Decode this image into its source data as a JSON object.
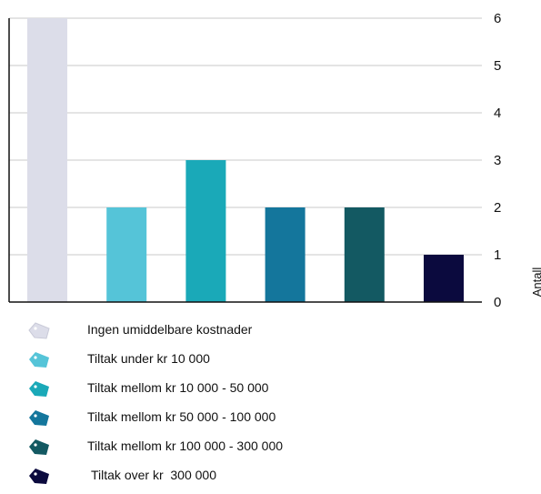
{
  "chart_data": {
    "type": "bar",
    "categories": [
      "Ingen umiddelbare kostnader",
      "Tiltak under kr 10 000",
      "Tiltak mellom kr 10 000 - 50 000",
      "Tiltak mellom kr 50 000 - 100 000",
      "Tiltak mellom kr 100 000 - 300 000",
      "Tiltak over kr  300 000"
    ],
    "values": [
      6,
      2,
      3,
      2,
      2,
      1
    ],
    "colors": [
      "#dcdde9",
      "#55c4d8",
      "#1aa9b8",
      "#14769c",
      "#135962",
      "#0b0a3e"
    ],
    "ylabel": "Antall",
    "ylim": [
      0,
      6
    ],
    "yticks": [
      "0",
      "1",
      "2",
      "3",
      "4",
      "5",
      "6"
    ],
    "y_axis_side": "right",
    "grid": true,
    "legend_position": "bottom"
  },
  "legend": {
    "items": [
      {
        "label": "Ingen umiddelbare kostnader",
        "icon": "price-tag-icon",
        "color": "#dcdde9"
      },
      {
        "label": "Tiltak under kr 10 000",
        "icon": "price-tag-icon",
        "color": "#55c4d8"
      },
      {
        "label": "Tiltak mellom kr 10 000 - 50 000",
        "icon": "price-tag-icon",
        "color": "#1aa9b8"
      },
      {
        "label": "Tiltak mellom kr 50 000 - 100 000",
        "icon": "price-tag-icon",
        "color": "#14769c"
      },
      {
        "label": "Tiltak mellom kr 100 000 - 300 000",
        "icon": "price-tag-icon",
        "color": "#135962"
      },
      {
        "label": "Tiltak over kr  300 000",
        "icon": "price-tag-icon",
        "color": "#0b0a3e"
      }
    ]
  }
}
